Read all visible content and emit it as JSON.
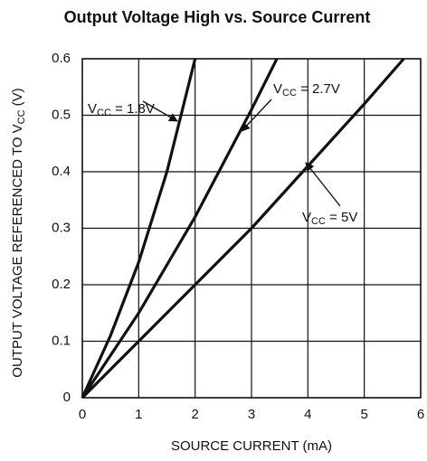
{
  "chart_data": {
    "type": "line",
    "title": "Output Voltage High vs. Source Current",
    "x_label": "SOURCE CURRENT (mA)",
    "y_label": [
      "OUTPUT VOLTAGE REFERENCED TO V",
      "CC",
      " (V)"
    ],
    "xlim": [
      0,
      6
    ],
    "xticks": [
      0,
      1,
      2,
      3,
      4,
      5,
      6
    ],
    "ylim": [
      0,
      0.6
    ],
    "yticks": [
      0,
      0.1,
      0.2,
      0.3,
      0.4,
      0.5,
      0.6
    ],
    "grid": true,
    "series": [
      {
        "name": [
          "V",
          "CC",
          " = 1.8V"
        ],
        "color": "#111111",
        "x": [
          0,
          0.5,
          1,
          1.5,
          2.0
        ],
        "values": [
          0,
          0.11,
          0.24,
          0.4,
          0.6
        ]
      },
      {
        "name": [
          "V",
          "CC",
          " = 2.7V"
        ],
        "color": "#111111",
        "x": [
          0,
          1,
          2,
          3,
          3.45
        ],
        "values": [
          0,
          0.15,
          0.32,
          0.51,
          0.6
        ]
      },
      {
        "name": [
          "V",
          "CC",
          " = 5V"
        ],
        "color": "#111111",
        "x": [
          0,
          1,
          2,
          3,
          4,
          5,
          5.7
        ],
        "values": [
          0,
          0.1,
          0.2,
          0.3,
          0.41,
          0.52,
          0.6
        ]
      }
    ]
  }
}
